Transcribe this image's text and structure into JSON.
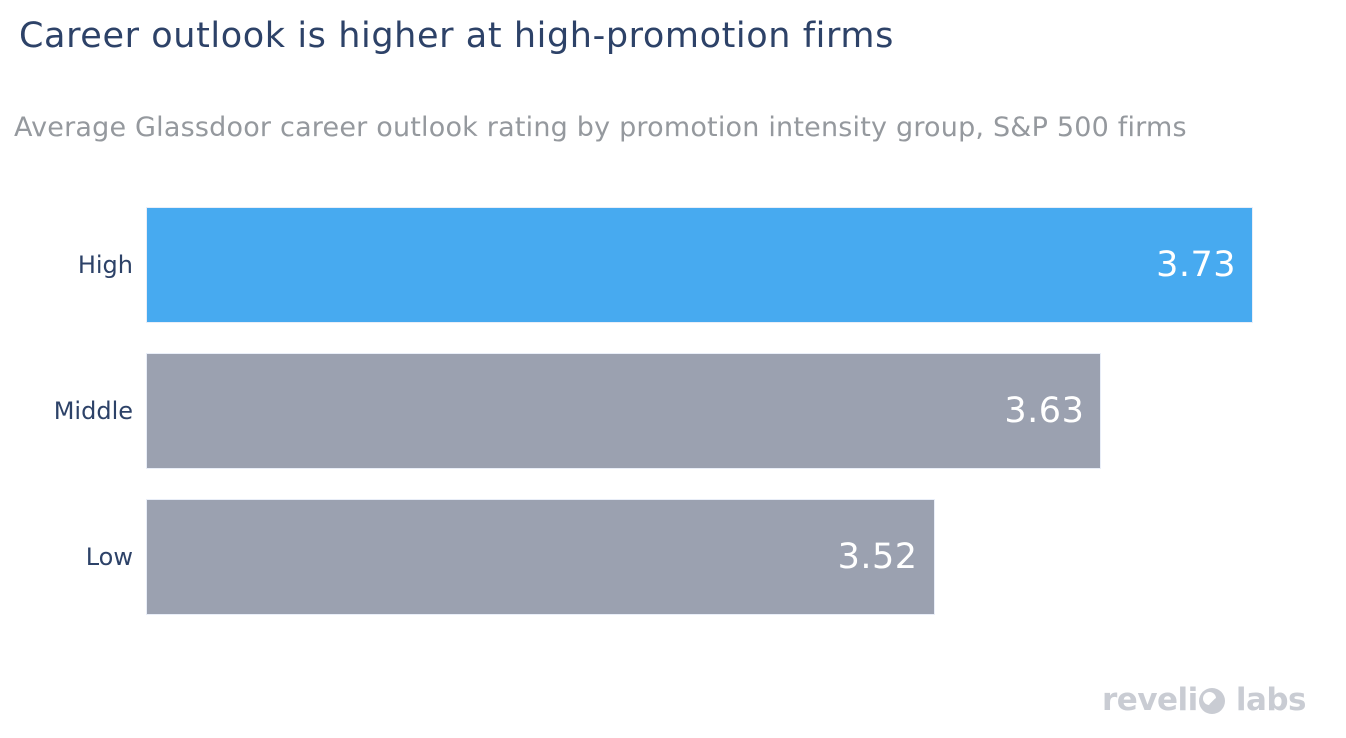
{
  "header": {
    "title": "Career outlook is higher at high-promotion firms",
    "subtitle": "Average Glassdoor career outlook rating by promotion intensity group, S&P 500 firms"
  },
  "chart_data": {
    "type": "bar",
    "orientation": "horizontal",
    "title": "Career outlook is higher at high-promotion firms",
    "subtitle": "Average Glassdoor career outlook rating by promotion intensity group, S&P 500 firms",
    "categories": [
      "High",
      "Middle",
      "Low"
    ],
    "values": [
      3.73,
      3.63,
      3.52
    ],
    "value_labels": [
      "3.73",
      "3.63",
      "3.52"
    ],
    "xlabel": "",
    "ylabel": "",
    "xlim": [
      3.0,
      3.73
    ],
    "grid": false,
    "legend": false,
    "bar_colors": [
      "#47aaf0",
      "#9ba1b0",
      "#9ba1b0"
    ],
    "highlight_color": "#47aaf0",
    "default_color": "#9ba1b0",
    "category_label_color": "#2d4268",
    "value_label_color": "#ffffff"
  },
  "branding": {
    "logo_part1": "reveli",
    "logo_part2": "labs",
    "logo_color": "#c9ccd3"
  },
  "colors": {
    "background": "#ffffff",
    "title": "#2d4268",
    "subtitle": "#95999e",
    "bar_border": "#e9eef8"
  }
}
